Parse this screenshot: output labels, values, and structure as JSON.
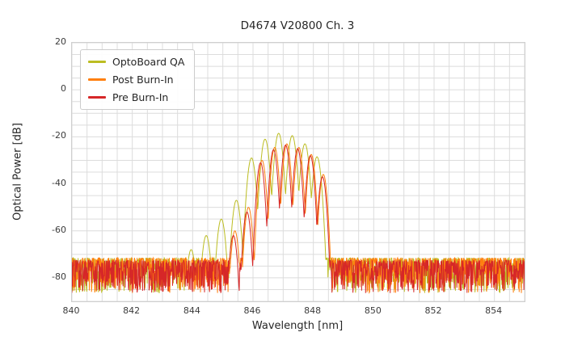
{
  "chart_data": {
    "type": "line",
    "title": "D4674 V20800 Ch. 3",
    "xlabel": "Wavelength [nm]",
    "ylabel": "Optical Power [dB]",
    "xlim": [
      840,
      855
    ],
    "ylim": [
      -90,
      20
    ],
    "xticks": [
      840,
      842,
      844,
      846,
      848,
      850,
      852,
      854
    ],
    "yticks": [
      20,
      0,
      -20,
      -40,
      -60,
      -80
    ],
    "grid": {
      "on": true,
      "minor_x_step_nm": 0.5,
      "minor_y_step_db": 5,
      "color": "#dcdcdc"
    },
    "legend": {
      "position": "upper-left",
      "entries": [
        "OptoBoard QA",
        "Post Burn-In",
        "Pre Burn-In"
      ]
    },
    "series": [
      {
        "name": "OptoBoard QA",
        "color": "#bcbd22",
        "noise_floor_top_db": -71.5,
        "noise_spread_db": 15,
        "mode_half_spacing_nm": 0.225,
        "valley_depth_db": 26,
        "modes": [
          [
            843.95,
            -68
          ],
          [
            844.45,
            -62
          ],
          [
            844.95,
            -55
          ],
          [
            845.45,
            -47
          ],
          [
            845.95,
            -29
          ],
          [
            846.4,
            -21
          ],
          [
            846.85,
            -18.5
          ],
          [
            847.3,
            -19.5
          ],
          [
            847.72,
            -23
          ],
          [
            848.12,
            -28.5
          ]
        ]
      },
      {
        "name": "Post Burn-In",
        "color": "#ff7f0e",
        "noise_floor_top_db": -71.5,
        "noise_spread_db": 15,
        "mode_half_spacing_nm": 0.2,
        "valley_depth_db": 26,
        "modes": [
          [
            845.4,
            -60
          ],
          [
            845.85,
            -50
          ],
          [
            846.3,
            -30
          ],
          [
            846.72,
            -24.5
          ],
          [
            847.12,
            -23
          ],
          [
            847.52,
            -24.5
          ],
          [
            847.93,
            -27.5
          ],
          [
            848.33,
            -36
          ]
        ]
      },
      {
        "name": "Pre Burn-In",
        "color": "#d62728",
        "noise_floor_top_db": -72.5,
        "noise_spread_db": 14,
        "mode_half_spacing_nm": 0.2,
        "valley_depth_db": 26,
        "modes": [
          [
            845.35,
            -62
          ],
          [
            845.8,
            -52
          ],
          [
            846.25,
            -31
          ],
          [
            846.68,
            -25.5
          ],
          [
            847.08,
            -23.5
          ],
          [
            847.48,
            -25
          ],
          [
            847.9,
            -28
          ],
          [
            848.3,
            -37
          ]
        ]
      }
    ]
  }
}
